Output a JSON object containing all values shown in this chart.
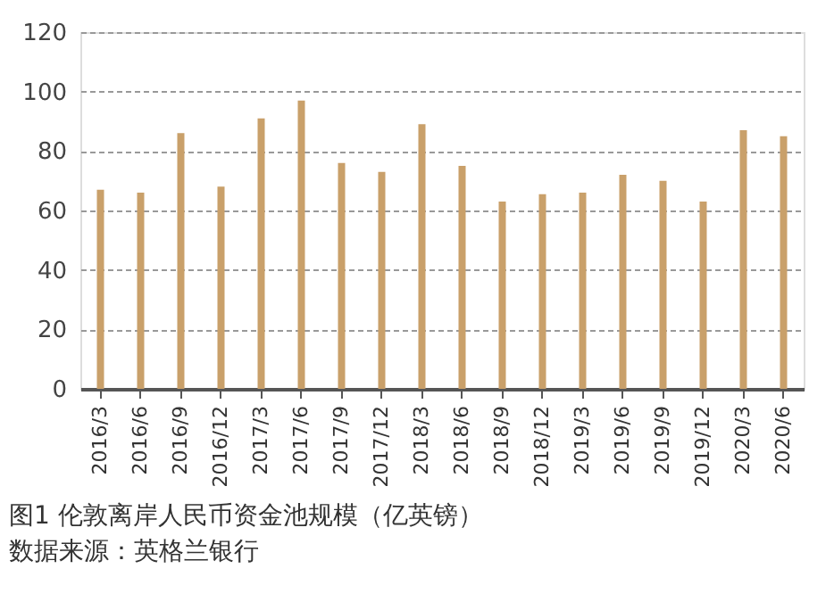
{
  "chart_data": {
    "type": "bar",
    "title": "图1 伦敦离岸人民币资金池规模（亿英镑）",
    "annotations": [
      "数据来源：英格兰银行"
    ],
    "categories": [
      "2016/3",
      "2016/6",
      "2016/9",
      "2016/12",
      "2017/3",
      "2017/6",
      "2017/9",
      "2017/12",
      "2018/3",
      "2018/6",
      "2018/9",
      "2018/12",
      "2019/3",
      "2019/6",
      "2019/9",
      "2019/12",
      "2020/3",
      "2020/6"
    ],
    "values": [
      67,
      66,
      86,
      68,
      91,
      97,
      76,
      73,
      89,
      75,
      63,
      65.5,
      66,
      72,
      70,
      63,
      87,
      85
    ],
    "color": "#c9a06a",
    "ylim": [
      0,
      120
    ],
    "yticks": [
      0,
      20,
      40,
      60,
      80,
      100,
      120
    ],
    "grid": "y"
  }
}
